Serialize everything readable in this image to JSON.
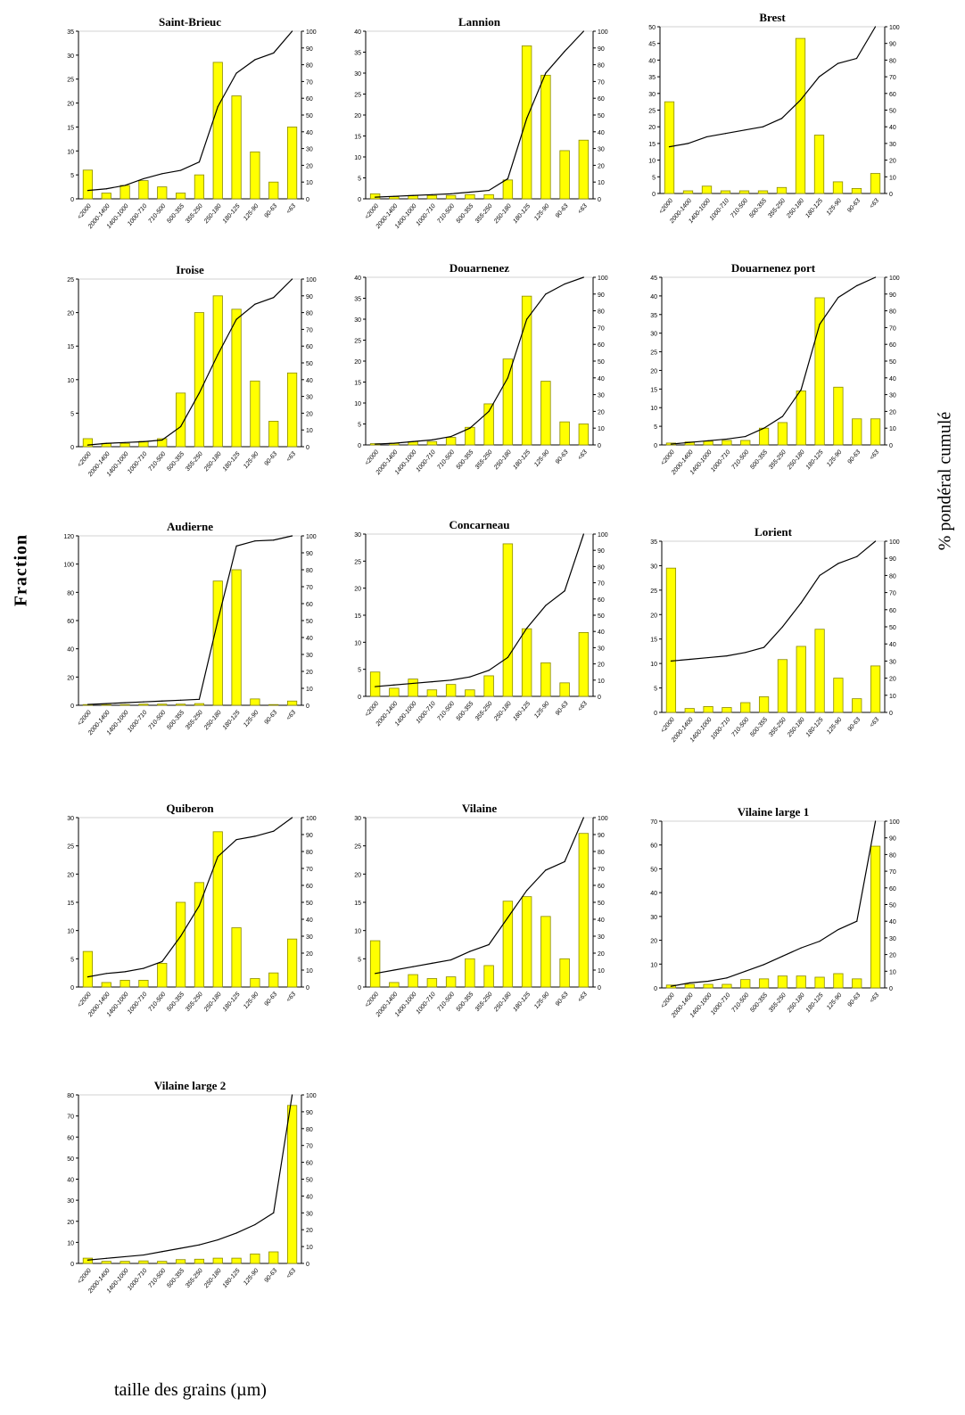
{
  "figure": {
    "ylabel_left": "Fraction",
    "ylabel_right": "% pondéral cumulé",
    "xlabel": "taille des grains (µm)"
  },
  "colors": {
    "bar_fill": "#ffff00",
    "bar_stroke": "#8a8a00",
    "line": "#000000",
    "axis": "#000000"
  },
  "chart_data": [
    {
      "type": "bar",
      "title": "Saint-Brieuc",
      "categories": [
        "<2000",
        "2000-1400",
        "1400-1000",
        "1000-710",
        "710-500",
        "500-355",
        "355-250",
        "250-180",
        "180-125",
        "125-90",
        "90-63",
        "<63"
      ],
      "values": [
        6,
        1.2,
        2.8,
        3.8,
        2.5,
        1.2,
        5,
        28.5,
        21.5,
        9.8,
        3.5,
        15
      ],
      "cumulative": [
        5,
        6,
        8,
        12,
        15,
        17,
        22,
        55,
        75,
        83,
        87,
        100
      ],
      "ylim": [
        0,
        35
      ],
      "yticks": [
        0,
        5,
        10,
        15,
        20,
        25,
        30,
        35
      ],
      "y2lim": [
        0,
        100
      ],
      "y2ticks": [
        0,
        10,
        20,
        30,
        40,
        50,
        60,
        70,
        80,
        90,
        100
      ]
    },
    {
      "type": "bar",
      "title": "Lannion",
      "categories": [
        "<2000",
        "2000-1400",
        "1400-1000",
        "1000-710",
        "710-500",
        "500-355",
        "355-250",
        "250-180",
        "180-125",
        "125-90",
        "90-63",
        "<63"
      ],
      "values": [
        1.2,
        0.5,
        0.8,
        0.8,
        0.8,
        1,
        1,
        4.5,
        36.5,
        29.5,
        11.5,
        14
      ],
      "cumulative": [
        1,
        1.5,
        2,
        2.5,
        3,
        4,
        5,
        12,
        48,
        75,
        88,
        100
      ],
      "ylim": [
        0,
        40
      ],
      "yticks": [
        0,
        5,
        10,
        15,
        20,
        25,
        30,
        35,
        40
      ],
      "y2lim": [
        0,
        100
      ],
      "y2ticks": [
        0,
        10,
        20,
        30,
        40,
        50,
        60,
        70,
        80,
        90,
        100
      ]
    },
    {
      "type": "bar",
      "title": "Brest",
      "categories": [
        "<2000",
        "2000-1400",
        "1400-1000",
        "1000-710",
        "710-500",
        "500-355",
        "355-250",
        "250-180",
        "180-125",
        "125-90",
        "90-63",
        "<63"
      ],
      "values": [
        27.5,
        0.8,
        2.2,
        0.8,
        0.8,
        0.8,
        1.8,
        46.5,
        17.5,
        3.5,
        1.5,
        6
      ],
      "cumulative": [
        28,
        30,
        34,
        36,
        38,
        40,
        45,
        56,
        70,
        78,
        81,
        100
      ],
      "ylim": [
        0,
        50
      ],
      "yticks": [
        0,
        5,
        10,
        15,
        20,
        25,
        30,
        35,
        40,
        45,
        50
      ],
      "y2lim": [
        0,
        100
      ],
      "y2ticks": [
        0,
        10,
        20,
        30,
        40,
        50,
        60,
        70,
        80,
        90,
        100
      ]
    },
    {
      "type": "bar",
      "title": "Iroise",
      "categories": [
        "<2000",
        "2000-1400",
        "1400-1000",
        "1000-710",
        "710-500",
        "500-355",
        "355-250",
        "250-180",
        "180-125",
        "125-90",
        "90-63",
        "<63"
      ],
      "values": [
        1.2,
        0.5,
        0.5,
        0.8,
        1.2,
        8,
        20,
        22.5,
        20.5,
        9.8,
        3.8,
        11
      ],
      "cumulative": [
        1,
        2,
        2.5,
        3,
        4,
        12,
        32,
        55,
        76,
        85,
        89,
        100
      ],
      "ylim": [
        0,
        25
      ],
      "yticks": [
        0,
        5,
        10,
        15,
        20,
        25
      ],
      "y2lim": [
        0,
        100
      ],
      "y2ticks": [
        0,
        10,
        20,
        30,
        40,
        50,
        60,
        70,
        80,
        90,
        100
      ]
    },
    {
      "type": "bar",
      "title": "Douarnenez",
      "categories": [
        "<2000",
        "2000-1400",
        "1400-1000",
        "1000-710",
        "710-500",
        "500-355",
        "355-250",
        "250-180",
        "180-125",
        "125-90",
        "90-63",
        "<63"
      ],
      "values": [
        0.3,
        0.4,
        0.8,
        0.8,
        1.8,
        4.2,
        9.8,
        20.5,
        35.5,
        15.2,
        5.5,
        5
      ],
      "cumulative": [
        0.5,
        1,
        2,
        3,
        5,
        10,
        20,
        40,
        75,
        90,
        96,
        100
      ],
      "ylim": [
        0,
        40
      ],
      "yticks": [
        0,
        5,
        10,
        15,
        20,
        25,
        30,
        35,
        40
      ],
      "y2lim": [
        0,
        100
      ],
      "y2ticks": [
        0,
        10,
        20,
        30,
        40,
        50,
        60,
        70,
        80,
        90,
        100
      ]
    },
    {
      "type": "bar",
      "title": "Douarnenez port",
      "categories": [
        "<2000",
        "2000-1400",
        "1400-1000",
        "1000-710",
        "710-500",
        "500-355",
        "355-250",
        "250-180",
        "180-125",
        "125-90",
        "90-63",
        "<63"
      ],
      "values": [
        0.5,
        0.8,
        1,
        1.2,
        1.2,
        4.5,
        6,
        14.5,
        39.5,
        15.5,
        7,
        7
      ],
      "cumulative": [
        0.5,
        1.5,
        2.5,
        3.5,
        5,
        10,
        17,
        33,
        72,
        88,
        95,
        100
      ],
      "ylim": [
        0,
        45
      ],
      "yticks": [
        0,
        5,
        10,
        15,
        20,
        25,
        30,
        35,
        40,
        45
      ],
      "y2lim": [
        0,
        100
      ],
      "y2ticks": [
        0,
        10,
        20,
        30,
        40,
        50,
        60,
        70,
        80,
        90,
        100
      ]
    },
    {
      "type": "bar",
      "title": "Audierne",
      "categories": [
        "<2000",
        "2000-1400",
        "1400-1000",
        "1000-710",
        "710-500",
        "500-355",
        "355-250",
        "250-180",
        "180-125",
        "125-90",
        "90-63",
        "<63"
      ],
      "values": [
        0.5,
        0.5,
        0.5,
        0.8,
        0.8,
        0.8,
        1.2,
        88,
        96,
        4.5,
        0.5,
        3
      ],
      "cumulative": [
        0.5,
        1,
        1.5,
        2,
        2.5,
        3,
        3.5,
        50,
        94,
        97,
        97.5,
        100
      ],
      "ylim": [
        0,
        120
      ],
      "yticks": [
        0,
        20,
        40,
        60,
        80,
        100,
        120
      ],
      "y2lim": [
        0,
        100
      ],
      "y2ticks": [
        0,
        10,
        20,
        30,
        40,
        50,
        60,
        70,
        80,
        90,
        100
      ]
    },
    {
      "type": "bar",
      "title": "Concarneau",
      "categories": [
        "<2000",
        "2000-1400",
        "1400-1000",
        "1000-710",
        "710-500",
        "500-355",
        "355-250",
        "250-180",
        "180-125",
        "125-90",
        "90-63",
        "<63"
      ],
      "values": [
        4.5,
        1.5,
        3.2,
        1.2,
        2.2,
        1.2,
        3.8,
        28.2,
        12.5,
        6.2,
        2.5,
        11.8
      ],
      "cumulative": [
        6,
        7,
        8,
        9,
        10,
        12,
        16,
        24,
        42,
        56,
        65,
        100
      ],
      "ylim": [
        0,
        30
      ],
      "yticks": [
        0,
        5,
        10,
        15,
        20,
        25,
        30
      ],
      "y2lim": [
        0,
        100
      ],
      "y2ticks": [
        0,
        10,
        20,
        30,
        40,
        50,
        60,
        70,
        80,
        90,
        100
      ]
    },
    {
      "type": "bar",
      "title": "Lorient",
      "categories": [
        "<2000",
        "2000-1400",
        "1400-1000",
        "1000-710",
        "710-500",
        "500-355",
        "355-250",
        "250-180",
        "180-125",
        "125-90",
        "90-63",
        "<63"
      ],
      "values": [
        29.5,
        0.8,
        1.2,
        1,
        2,
        3.2,
        10.8,
        13.5,
        17,
        7,
        2.8,
        9.5
      ],
      "cumulative": [
        30,
        31,
        32,
        33,
        35,
        38,
        50,
        64,
        80,
        87,
        91,
        100
      ],
      "ylim": [
        0,
        35
      ],
      "yticks": [
        0,
        5,
        10,
        15,
        20,
        25,
        30,
        35
      ],
      "y2lim": [
        0,
        100
      ],
      "y2ticks": [
        0,
        10,
        20,
        30,
        40,
        50,
        60,
        70,
        80,
        90,
        100
      ]
    },
    {
      "type": "bar",
      "title": "Quiberon",
      "categories": [
        "<2000",
        "2000-1400",
        "1400-1000",
        "1000-710",
        "710-500",
        "500-355",
        "355-250",
        "250-180",
        "180-125",
        "125-90",
        "90-63",
        "<63"
      ],
      "values": [
        6.3,
        0.8,
        1.2,
        1.2,
        4.2,
        15,
        18.5,
        27.5,
        10.5,
        1.5,
        2.5,
        8.5
      ],
      "cumulative": [
        6,
        8,
        9,
        11,
        15,
        30,
        48,
        77,
        87,
        89,
        92,
        100
      ],
      "ylim": [
        0,
        30
      ],
      "yticks": [
        0,
        5,
        10,
        15,
        20,
        25,
        30
      ],
      "y2lim": [
        0,
        100
      ],
      "y2ticks": [
        0,
        10,
        20,
        30,
        40,
        50,
        60,
        70,
        80,
        90,
        100
      ]
    },
    {
      "type": "bar",
      "title": "Vilaine",
      "categories": [
        "<2000",
        "2000-1400",
        "1400-1000",
        "1000-710",
        "710-500",
        "500-355",
        "355-250",
        "250-180",
        "180-125",
        "125-90",
        "90-63",
        "<63"
      ],
      "values": [
        8.2,
        0.8,
        2.2,
        1.5,
        1.8,
        5,
        3.8,
        15.2,
        16,
        12.5,
        5,
        27.2
      ],
      "cumulative": [
        8,
        10,
        12,
        14,
        16,
        21,
        25,
        41,
        57,
        69,
        74,
        100
      ],
      "ylim": [
        0,
        30
      ],
      "yticks": [
        0,
        5,
        10,
        15,
        20,
        25,
        30
      ],
      "y2lim": [
        0,
        100
      ],
      "y2ticks": [
        0,
        10,
        20,
        30,
        40,
        50,
        60,
        70,
        80,
        90,
        100
      ]
    },
    {
      "type": "bar",
      "title": "Vilaine large 1",
      "categories": [
        "<2000",
        "2000-1400",
        "1400-1000",
        "1000-710",
        "710-500",
        "500-355",
        "355-250",
        "250-180",
        "180-125",
        "125-90",
        "90-63",
        "<63"
      ],
      "values": [
        1.2,
        1.5,
        1.5,
        1.5,
        3.5,
        3.8,
        5,
        5,
        4.5,
        6,
        3.8,
        59.5
      ],
      "cumulative": [
        1,
        3,
        4,
        6,
        10,
        14,
        19,
        24,
        28,
        35,
        40,
        100
      ],
      "ylim": [
        0,
        70
      ],
      "yticks": [
        0,
        10,
        20,
        30,
        40,
        50,
        60,
        70
      ],
      "y2lim": [
        0,
        100
      ],
      "y2ticks": [
        0,
        10,
        20,
        30,
        40,
        50,
        60,
        70,
        80,
        90,
        100
      ]
    },
    {
      "type": "bar",
      "title": "Vilaine large 2",
      "categories": [
        "<2000",
        "2000-1400",
        "1400-1000",
        "1000-710",
        "710-500",
        "500-355",
        "355-250",
        "250-180",
        "180-125",
        "125-90",
        "90-63",
        "<63"
      ],
      "values": [
        2.5,
        1,
        1,
        1.2,
        1,
        1.8,
        2,
        2.5,
        2.5,
        4.5,
        5.5,
        75
      ],
      "cumulative": [
        2,
        3,
        4,
        5,
        7,
        9,
        11,
        14,
        18,
        23,
        30,
        100
      ],
      "ylim": [
        0,
        80
      ],
      "yticks": [
        0,
        10,
        20,
        30,
        40,
        50,
        60,
        70,
        80
      ],
      "y2lim": [
        0,
        100
      ],
      "y2ticks": [
        0,
        10,
        20,
        30,
        40,
        50,
        60,
        70,
        80,
        90,
        100
      ]
    }
  ]
}
